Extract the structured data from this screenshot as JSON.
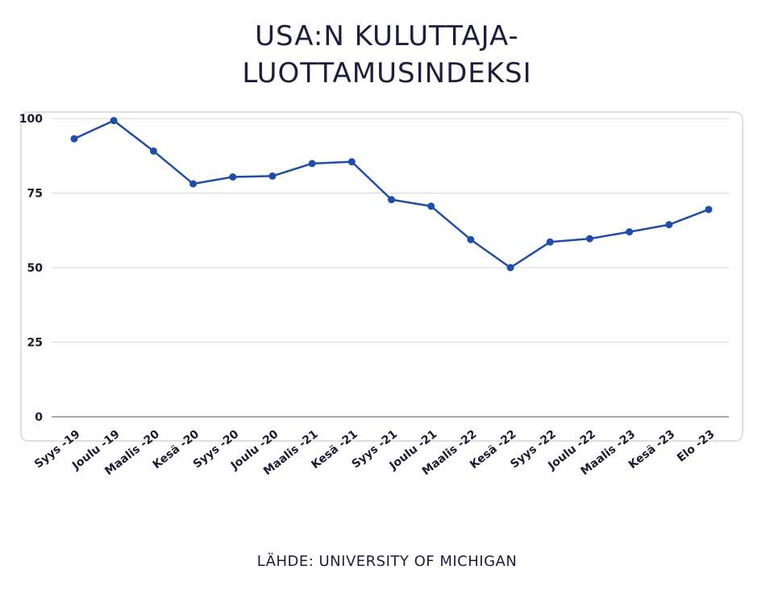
{
  "title_line1": "USA:N KULUTTAJA-",
  "title_line2": "LUOTTAMUSINDEKSI",
  "source": "LÄHDE: UNIVERSITY OF MICHIGAN",
  "colors": {
    "line": "#1f4ea8",
    "grid": "#d9d9d9",
    "axis": "#555555"
  },
  "chart_data": {
    "type": "line",
    "title": "USA:N KULUTTAJA-LUOTTAMUSINDEKSI",
    "xlabel": "",
    "ylabel": "",
    "ylim": [
      0,
      100
    ],
    "yticks": [
      0,
      25,
      50,
      75,
      100
    ],
    "grid": true,
    "categories": [
      "Syys -19",
      "Joulu -19",
      "Maalis -20",
      "Kesä -20",
      "Syys -20",
      "Joulu -20",
      "Maalis -21",
      "Kesä -21",
      "Syys -21",
      "Joulu -21",
      "Maalis -22",
      "Kesä -22",
      "Syys -22",
      "Joulu -22",
      "Maalis -23",
      "Kesä -23",
      "Elo -23"
    ],
    "series": [
      {
        "values": [
          93.2,
          99.3,
          89.1,
          78.1,
          80.4,
          80.7,
          84.9,
          85.5,
          72.8,
          70.6,
          59.4,
          50.0,
          58.6,
          59.7,
          62.0,
          64.4,
          69.5
        ]
      }
    ]
  }
}
